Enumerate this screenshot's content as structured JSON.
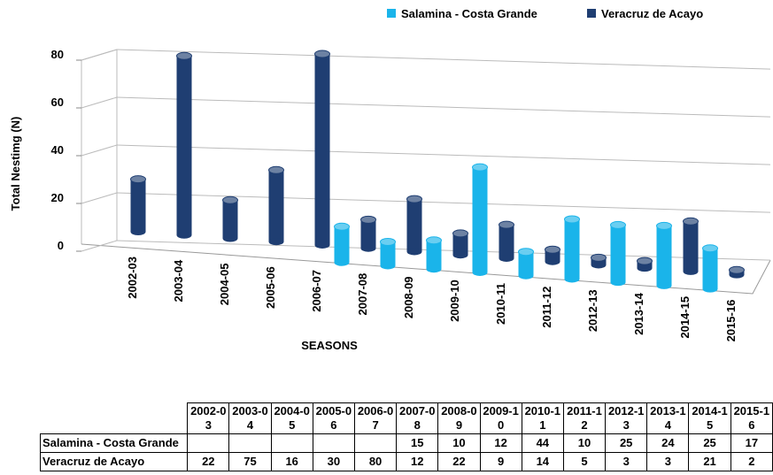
{
  "chart_data": {
    "type": "bar",
    "ylabel": "Total Nestimg (N)",
    "xlabel": "SEASONS",
    "categories": [
      "2002-03",
      "2003-04",
      "2004-05",
      "2005-06",
      "2006-07",
      "2007-08",
      "2008-09",
      "2009-10",
      "2010-11",
      "2011-12",
      "2012-13",
      "2013-14",
      "2014-15",
      "2015-16"
    ],
    "series": [
      {
        "name": "Salamina - Costa Grande",
        "color": "#1ab4ea",
        "values": [
          null,
          null,
          null,
          null,
          null,
          15,
          10,
          12,
          44,
          10,
          25,
          24,
          25,
          17
        ]
      },
      {
        "name": "Veracruz de Acayo",
        "color": "#1f3e72",
        "values": [
          22,
          75,
          16,
          30,
          80,
          12,
          22,
          9,
          14,
          5,
          3,
          3,
          21,
          2
        ]
      }
    ],
    "ylim": [
      0,
      80
    ],
    "yticks": [
      0,
      20,
      40,
      60,
      80
    ],
    "grid": true,
    "legend": "top"
  }
}
